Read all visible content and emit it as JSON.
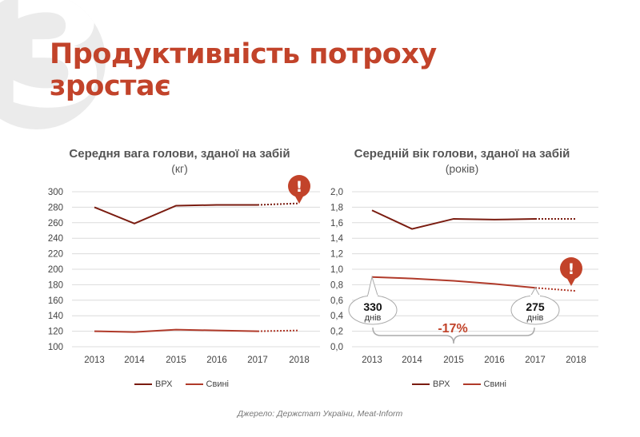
{
  "big_number": "3",
  "title_line1": "Продуктивність потроху",
  "title_line2": "зростає",
  "colors": {
    "accent": "#c2432a",
    "series_vrh": "#7a1c10",
    "series_pigs": "#b03a2a",
    "grid": "#dcdcdc"
  },
  "chart_data": [
    {
      "type": "line",
      "title": "Середня вага голови, зданої на забій",
      "subtitle": "(кг)",
      "categories": [
        "2013",
        "2014",
        "2015",
        "2016",
        "2017",
        "2018"
      ],
      "yticks": [
        "300",
        "280",
        "260",
        "240",
        "220",
        "200",
        "180",
        "160",
        "140",
        "120",
        "100"
      ],
      "ylim": [
        100,
        300
      ],
      "series": [
        {
          "name": "ВРХ",
          "values": [
            280,
            259,
            282,
            283,
            283,
            285
          ],
          "forecast_from": 4
        },
        {
          "name": "Свині",
          "values": [
            120,
            119,
            122,
            121,
            120,
            121
          ],
          "forecast_from": 4
        }
      ],
      "alert_icon": "exclamation-icon",
      "alert_text": "!",
      "legend": [
        "ВРХ",
        "Свині"
      ]
    },
    {
      "type": "line",
      "title": "Середній вік голови, зданої на забій",
      "subtitle": "(років)",
      "categories": [
        "2013",
        "2014",
        "2015",
        "2016",
        "2017",
        "2018"
      ],
      "yticks": [
        "2,0",
        "1,8",
        "1,6",
        "1,4",
        "1,2",
        "1,0",
        "0,8",
        "0,6",
        "0,4",
        "0,2",
        "0,0"
      ],
      "ylim": [
        0,
        2.0
      ],
      "series": [
        {
          "name": "ВРХ",
          "values": [
            1.76,
            1.52,
            1.65,
            1.64,
            1.65,
            1.65
          ],
          "forecast_from": 4
        },
        {
          "name": "Свині",
          "values": [
            0.9,
            0.88,
            0.85,
            0.81,
            0.76,
            0.72
          ],
          "forecast_from": 4
        }
      ],
      "callouts": [
        {
          "value": "330",
          "unit": "днів"
        },
        {
          "value": "275",
          "unit": "днів"
        }
      ],
      "change_label": "-17%",
      "alert_icon": "exclamation-icon",
      "alert_text": "!",
      "legend": [
        "ВРХ",
        "Свині"
      ]
    }
  ],
  "source": "Джерело: Держстат України, Meat-Inform"
}
